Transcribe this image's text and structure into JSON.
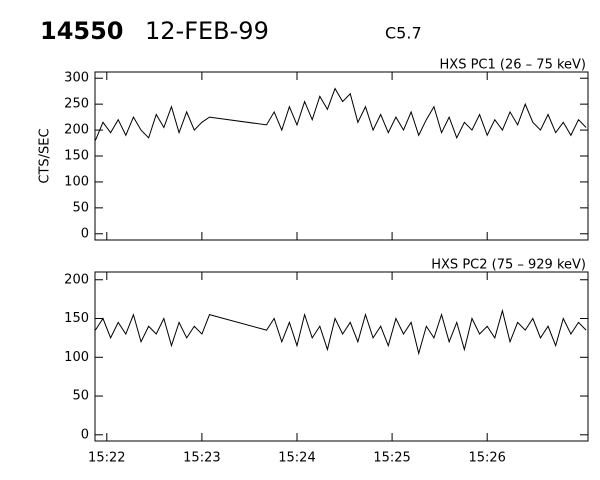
{
  "header": {
    "id": "14550",
    "date": "12-FEB-99",
    "class": "C5.7"
  },
  "chart_data": [
    {
      "type": "line",
      "title": "HXS PC1 (26 – 75 keV)",
      "ylabel": "CTS/SEC",
      "x": [
        21.88,
        21.96,
        22.04,
        22.12,
        22.2,
        22.28,
        22.36,
        22.44,
        22.52,
        22.6,
        22.68,
        22.76,
        22.84,
        22.92,
        23.0,
        23.08,
        23.68,
        23.76,
        23.84,
        23.92,
        24.0,
        24.08,
        24.16,
        24.24,
        24.32,
        24.4,
        24.48,
        24.56,
        24.64,
        24.72,
        24.8,
        24.88,
        24.96,
        25.04,
        25.12,
        25.2,
        25.28,
        25.36,
        25.44,
        25.52,
        25.6,
        25.68,
        25.76,
        25.84,
        25.92,
        26.0,
        26.08,
        26.16,
        26.24,
        26.32,
        26.4,
        26.48,
        26.56,
        26.64,
        26.72,
        26.8,
        26.88,
        26.96,
        27.04
      ],
      "series": [
        {
          "color": "#000000",
          "values": [
            180,
            215,
            195,
            220,
            190,
            225,
            200,
            185,
            230,
            205,
            245,
            195,
            235,
            200,
            215,
            225,
            210,
            235,
            200,
            245,
            210,
            255,
            220,
            265,
            240,
            280,
            255,
            270,
            215,
            245,
            200,
            230,
            195,
            225,
            200,
            235,
            190,
            220,
            245,
            195,
            225,
            185,
            215,
            200,
            230,
            190,
            220,
            200,
            235,
            210,
            250,
            215,
            200,
            230,
            195,
            215,
            190,
            220,
            205
          ]
        }
      ],
      "xlim": [
        21.876,
        27.06
      ],
      "ylim": [
        -12,
        312
      ],
      "xticks": [
        {
          "value": 22,
          "label": "15:22"
        },
        {
          "value": 23,
          "label": "15:23"
        },
        {
          "value": 24,
          "label": "15:24"
        },
        {
          "value": 25,
          "label": "15:25"
        },
        {
          "value": 26,
          "label": "15:26"
        }
      ],
      "yticks": [
        0,
        50,
        100,
        150,
        200,
        250,
        300
      ]
    },
    {
      "type": "line",
      "title": "HXS PC2 (75 – 929 keV)",
      "x": [
        21.88,
        21.96,
        22.04,
        22.12,
        22.2,
        22.28,
        22.36,
        22.44,
        22.52,
        22.6,
        22.68,
        22.76,
        22.84,
        22.92,
        23.0,
        23.08,
        23.68,
        23.76,
        23.84,
        23.92,
        24.0,
        24.08,
        24.16,
        24.24,
        24.32,
        24.4,
        24.48,
        24.56,
        24.64,
        24.72,
        24.8,
        24.88,
        24.96,
        25.04,
        25.12,
        25.2,
        25.28,
        25.36,
        25.44,
        25.52,
        25.6,
        25.68,
        25.76,
        25.84,
        25.92,
        26.0,
        26.08,
        26.16,
        26.24,
        26.32,
        26.4,
        26.48,
        26.56,
        26.64,
        26.72,
        26.8,
        26.88,
        26.96,
        27.04
      ],
      "series": [
        {
          "color": "#000000",
          "values": [
            135,
            150,
            125,
            145,
            130,
            155,
            120,
            140,
            130,
            150,
            115,
            145,
            125,
            140,
            130,
            155,
            135,
            150,
            120,
            145,
            115,
            155,
            125,
            140,
            110,
            150,
            130,
            145,
            120,
            155,
            125,
            140,
            115,
            150,
            130,
            145,
            105,
            140,
            125,
            155,
            120,
            145,
            110,
            150,
            130,
            140,
            125,
            160,
            120,
            145,
            135,
            150,
            125,
            140,
            115,
            150,
            130,
            145,
            135
          ]
        }
      ],
      "xlim": [
        21.876,
        27.06
      ],
      "ylim": [
        -8,
        210
      ],
      "xticks": [
        {
          "value": 22,
          "label": "15:22"
        },
        {
          "value": 23,
          "label": "15:23"
        },
        {
          "value": 24,
          "label": "15:24"
        },
        {
          "value": 25,
          "label": "15:25"
        },
        {
          "value": 26,
          "label": "15:26"
        }
      ],
      "yticks": [
        0,
        50,
        100,
        150,
        200
      ]
    }
  ]
}
